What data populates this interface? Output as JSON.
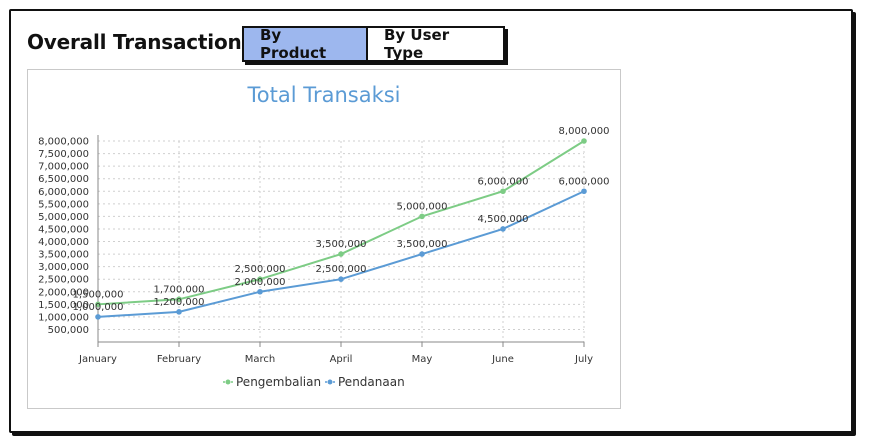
{
  "header": {
    "title": "Overall Transactions",
    "tabs": [
      {
        "label": "By Product",
        "active": true
      },
      {
        "label": "By User Type",
        "active": false
      }
    ]
  },
  "colors": {
    "accent_tab": "#9db7ee",
    "series_green": "#7dcc85",
    "series_blue": "#5b9bd5",
    "title_blue": "#5b9bd5"
  },
  "chart_data": {
    "type": "line",
    "title": "Total Transaksi",
    "xlabel": "",
    "ylabel": "",
    "categories": [
      "January",
      "February",
      "March",
      "April",
      "May",
      "June",
      "July"
    ],
    "ylim": [
      0,
      8000000
    ],
    "yticks": [
      "500,000",
      "1,000,000",
      "1,500,000",
      "2,000,000",
      "2,500,000",
      "3,000,000",
      "3,500,000",
      "4,000,000",
      "4,500,000",
      "5,000,000",
      "5,500,000",
      "6,000,000",
      "6,500,000",
      "7,000,000",
      "7,500,000",
      "8,000,000"
    ],
    "grid": true,
    "legend_position": "bottom",
    "series": [
      {
        "name": "Pengembalian",
        "color": "#7dcc85",
        "values": [
          1500000,
          1700000,
          2500000,
          3500000,
          5000000,
          6000000,
          8000000
        ],
        "labels": [
          "1,500,000",
          "1,700,000",
          "2,500,000",
          "3,500,000",
          "5,000,000",
          "6,000,000",
          "8,000,000"
        ]
      },
      {
        "name": "Pendanaan",
        "color": "#5b9bd5",
        "values": [
          1000000,
          1200000,
          2000000,
          2500000,
          3500000,
          4500000,
          6000000
        ],
        "labels": [
          "1,000,000",
          "1,200,000",
          "2,000,000",
          "2,500,000",
          "3,500,000",
          "4,500,000",
          "6,000,000"
        ]
      }
    ]
  }
}
